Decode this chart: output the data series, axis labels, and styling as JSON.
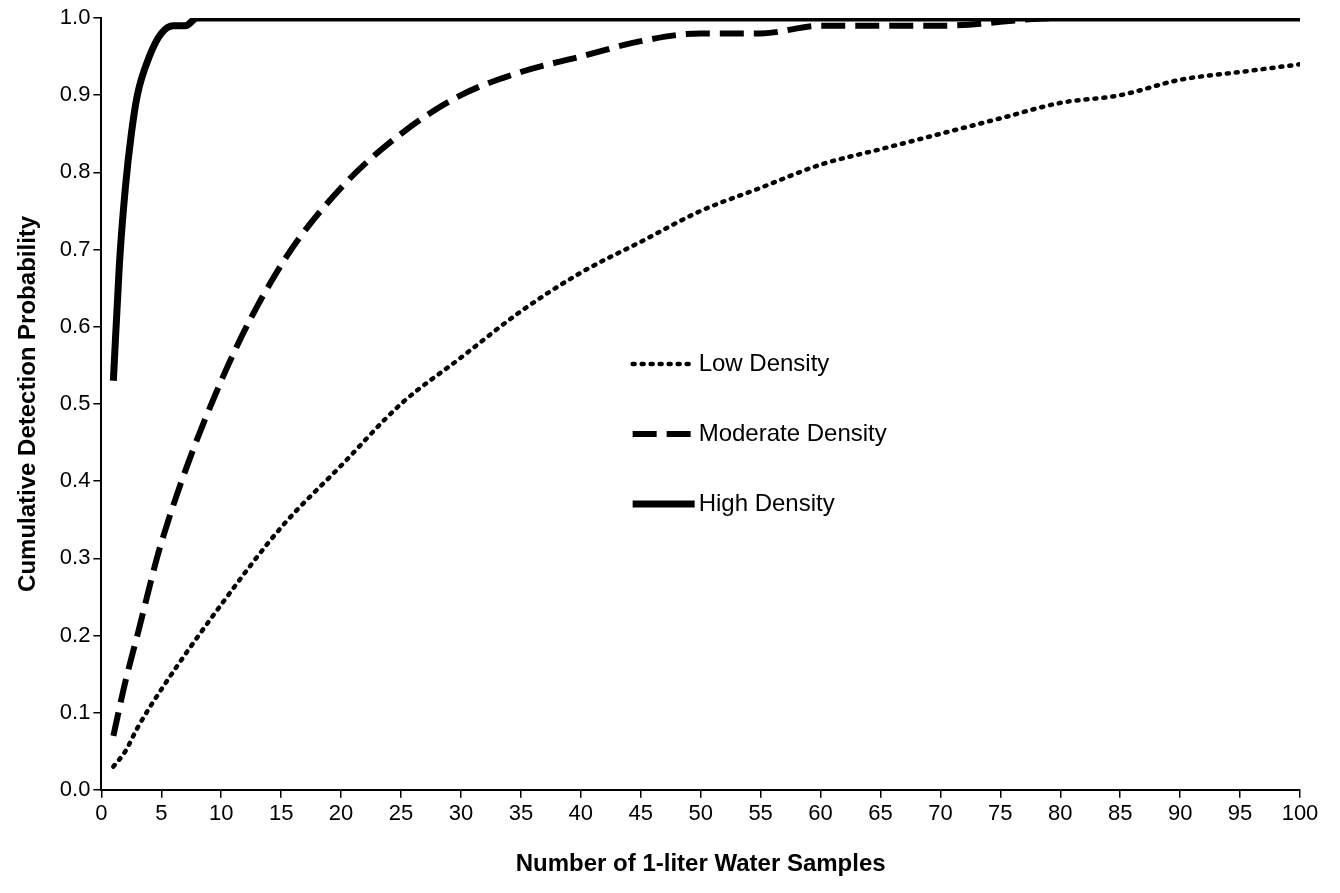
{
  "chart_data": {
    "type": "line",
    "xlabel": "Number of 1-liter Water Samples",
    "ylabel": "Cumulative Detection Probability",
    "xlim": [
      0,
      100
    ],
    "ylim": [
      0,
      1
    ],
    "xticks": [
      0,
      5,
      10,
      15,
      20,
      25,
      30,
      35,
      40,
      45,
      50,
      55,
      60,
      65,
      70,
      75,
      80,
      85,
      90,
      95,
      100
    ],
    "yticks": [
      {
        "value": 0,
        "label": "0.0"
      },
      0.1,
      0.2,
      0.3,
      0.4,
      0.5,
      0.6,
      0.7,
      0.8,
      0.9,
      {
        "value": 1,
        "label": "1.0"
      }
    ],
    "grid": false,
    "legend": "center",
    "marker": "none",
    "series": [
      {
        "name": "Low Density",
        "color": "#000000",
        "line_style": "dotted",
        "x": [
          1,
          2,
          3,
          5,
          10,
          15,
          20,
          25,
          30,
          35,
          40,
          45,
          50,
          55,
          60,
          65,
          70,
          75,
          80,
          85,
          90,
          95,
          100
        ],
        "values": [
          0.03,
          0.05,
          0.08,
          0.13,
          0.24,
          0.34,
          0.42,
          0.5,
          0.56,
          0.62,
          0.67,
          0.71,
          0.75,
          0.78,
          0.81,
          0.83,
          0.85,
          0.87,
          0.89,
          0.9,
          0.92,
          0.93,
          0.94
        ]
      },
      {
        "name": "Moderate Density",
        "color": "#000000",
        "line_style": "dashed",
        "x": [
          1,
          2,
          3,
          5,
          10,
          15,
          20,
          25,
          30,
          35,
          40,
          45,
          50,
          55,
          60,
          70,
          80,
          90,
          100
        ],
        "values": [
          0.07,
          0.14,
          0.2,
          0.32,
          0.53,
          0.68,
          0.78,
          0.85,
          0.9,
          0.93,
          0.95,
          0.97,
          0.98,
          0.98,
          0.99,
          0.99,
          1.0,
          1.0,
          1.0
        ]
      },
      {
        "name": "High Density",
        "color": "#000000",
        "line_style": "solid",
        "x": [
          1,
          1.5,
          2,
          2.5,
          3,
          4,
          5,
          6,
          7,
          8,
          10,
          100
        ],
        "values": [
          0.53,
          0.68,
          0.78,
          0.85,
          0.9,
          0.95,
          0.98,
          0.99,
          0.99,
          1.0,
          1.0,
          1.0
        ]
      }
    ]
  }
}
